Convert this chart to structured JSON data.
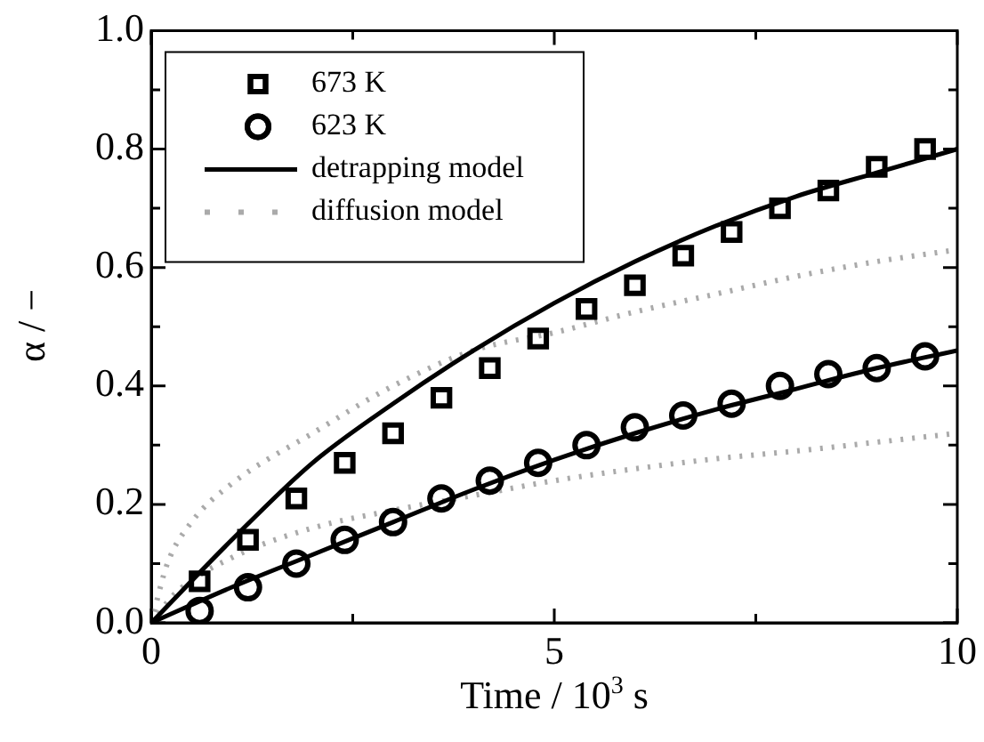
{
  "chart_data": {
    "type": "scatter",
    "xlabel": "Time / 10$^{3}$ s",
    "ylabel": "α / −",
    "xlim": [
      0,
      10
    ],
    "xticks": [
      0,
      {
        "value": 2.5,
        "label": null
      },
      5,
      {
        "value": 7.5,
        "label": null
      },
      10
    ],
    "ylim": [
      0,
      1
    ],
    "yticks": [
      {
        "value": 0,
        "label": "0.0"
      },
      {
        "value": 0.1,
        "label": null
      },
      {
        "value": 0.2,
        "label": "0.2"
      },
      {
        "value": 0.3,
        "label": null
      },
      {
        "value": 0.4,
        "label": "0.4"
      },
      {
        "value": 0.5,
        "label": null
      },
      {
        "value": 0.6,
        "label": "0.6"
      },
      {
        "value": 0.7,
        "label": null
      },
      {
        "value": 0.8,
        "label": "0.8"
      },
      {
        "value": 0.9,
        "label": null
      },
      {
        "value": 1,
        "label": "1.0"
      }
    ],
    "grid": false,
    "legend": "top left",
    "series": [
      {
        "name": "673 K",
        "marker": "square",
        "color": "#000000",
        "x": [
          0.6,
          1.2,
          1.8,
          2.4,
          3.0,
          3.6,
          4.2,
          4.8,
          5.4,
          6.0,
          6.6,
          7.2,
          7.8,
          8.4,
          9.0,
          9.6
        ],
        "values": [
          0.07,
          0.14,
          0.21,
          0.27,
          0.32,
          0.38,
          0.43,
          0.48,
          0.53,
          0.57,
          0.62,
          0.66,
          0.7,
          0.73,
          0.77,
          0.8
        ]
      },
      {
        "name": "623 K",
        "marker": "circle",
        "color": "#000000",
        "x": [
          0.6,
          1.2,
          1.8,
          2.4,
          3.0,
          3.6,
          4.2,
          4.8,
          5.4,
          6.0,
          6.6,
          7.2,
          7.8,
          8.4,
          9.0,
          9.6
        ],
        "values": [
          0.02,
          0.06,
          0.1,
          0.14,
          0.17,
          0.21,
          0.24,
          0.27,
          0.3,
          0.33,
          0.35,
          0.37,
          0.4,
          0.42,
          0.43,
          0.45
        ]
      },
      {
        "name": "detrapping model",
        "type": "line",
        "marker": "none",
        "line_style": "solid",
        "color": "#000000",
        "x": [
          0,
          1,
          2,
          3,
          4,
          5,
          6,
          7,
          8,
          9,
          10
        ],
        "values": [
          0,
          0.14,
          0.27,
          0.37,
          0.46,
          0.54,
          0.61,
          0.67,
          0.72,
          0.76,
          0.8
        ]
      },
      {
        "type": "line",
        "marker": "none",
        "line_style": "solid",
        "color": "#000000",
        "x": [
          0,
          1,
          2,
          3,
          4,
          5,
          6,
          7,
          8,
          9,
          10
        ],
        "values": [
          0,
          0.06,
          0.115,
          0.17,
          0.225,
          0.275,
          0.32,
          0.36,
          0.395,
          0.43,
          0.46
        ]
      },
      {
        "name": "diffusion model",
        "type": "line",
        "marker": "none",
        "line_style": "dotted",
        "color": "#aaaaaa",
        "x": [
          0,
          0.2,
          0.5,
          1,
          2,
          3,
          4,
          5,
          6,
          7,
          8,
          9,
          10
        ],
        "values": [
          0,
          0.1,
          0.17,
          0.235,
          0.32,
          0.4,
          0.46,
          0.49,
          0.525,
          0.555,
          0.585,
          0.61,
          0.63
        ]
      },
      {
        "type": "line",
        "marker": "none",
        "line_style": "dotted",
        "color": "#aaaaaa",
        "x": [
          0,
          0.3,
          1,
          2,
          3,
          4,
          5,
          6,
          7,
          8,
          9,
          10
        ],
        "values": [
          0,
          0.05,
          0.11,
          0.16,
          0.19,
          0.215,
          0.24,
          0.26,
          0.277,
          0.29,
          0.305,
          0.32
        ]
      }
    ]
  }
}
